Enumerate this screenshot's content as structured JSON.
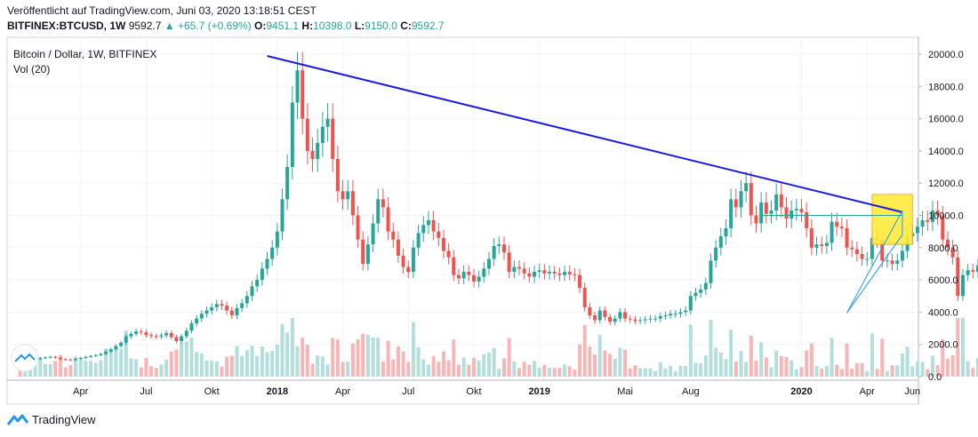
{
  "header": {
    "published": "Veröffentlicht auf TradingView.com, Juni 03, 2020 13:18:51 CEST",
    "symbol": "BITFINEX:BTCUSD, 1W",
    "last": "9592.7",
    "change": "▲ +65.7 (+0.69%)",
    "o_label": "O:",
    "o": "9451.1",
    "h_label": "H:",
    "h": "10398.0",
    "l_label": "L:",
    "l": "9150.0",
    "c_label": "C:",
    "c": "9592.7"
  },
  "legend": {
    "title": "Bitcoin / Dollar, 1W, BITFINEX",
    "vol": "Vol (20)"
  },
  "footer": {
    "brand": "TradingView"
  },
  "colors": {
    "up": "#26a69a",
    "down": "#ef5350",
    "up_vol": "#b2dfdb",
    "down_vol": "#f7b6b5",
    "trend": "#1c1ce0",
    "thin": "#2196f3",
    "box": "#ffeb3b"
  },
  "chart_data": {
    "type": "candlestick",
    "title": "Bitcoin / Dollar, 1W, BITFINEX",
    "ylim": [
      0,
      20000
    ],
    "y_ticks": [
      "0.0",
      "2000.0",
      "4000.0",
      "6000.0",
      "8000.0",
      "10000.0",
      "12000.0",
      "14000.0",
      "16000.0",
      "18000.0",
      "20000.0"
    ],
    "x_ticks": [
      "Apr",
      "Jul",
      "Okt",
      "2018",
      "Apr",
      "Jul",
      "Okt",
      "2019",
      "Mai",
      "Aug",
      "2020",
      "Apr",
      "Jun"
    ],
    "x_tick_positions_week": [
      13,
      26,
      39,
      52,
      65,
      78,
      91,
      104,
      121,
      134,
      156,
      169,
      178
    ],
    "start_date": "2017-01-02",
    "closes": [
      1000,
      980,
      1010,
      1040,
      1080,
      1150,
      1190,
      1230,
      1170,
      1080,
      1060,
      1030,
      1100,
      1160,
      1220,
      1280,
      1330,
      1400,
      1550,
      1700,
      1900,
      2100,
      2500,
      2650,
      2800,
      2750,
      2580,
      2520,
      2480,
      2560,
      2700,
      2450,
      2200,
      2500,
      2850,
      3300,
      3600,
      3900,
      4100,
      4300,
      4500,
      4400,
      4100,
      3800,
      4250,
      4550,
      5000,
      5600,
      6000,
      6700,
      7300,
      8000,
      9000,
      11000,
      13000,
      17000,
      19000,
      16000,
      14000,
      13500,
      14500,
      15500,
      16000,
      13500,
      11500,
      11000,
      11500,
      10000,
      8500,
      7000,
      8200,
      9500,
      11000,
      10500,
      9000,
      8500,
      7500,
      6800,
      6500,
      8000,
      8900,
      9400,
      9700,
      9000,
      8600,
      7800,
      7400,
      6300,
      6100,
      6500,
      6300,
      5900,
      6200,
      6700,
      7300,
      8100,
      8200,
      7700,
      6500,
      6800,
      6700,
      6400,
      6200,
      6500,
      6600,
      6400,
      6500,
      6400,
      6300,
      6500,
      6350,
      6300,
      5500,
      4300,
      3800,
      3500,
      4100,
      3700,
      3400,
      3600,
      4000,
      3600,
      3550,
      3450,
      3500,
      3550,
      3600,
      3600,
      3750,
      3800,
      3900,
      3900,
      4000,
      4100,
      5000,
      5200,
      5400,
      5800,
      7200,
      8000,
      8700,
      9200,
      11000,
      10500,
      11500,
      12000,
      10000,
      9500,
      10800,
      10100,
      10300,
      11300,
      10500,
      9800,
      10300,
      10400,
      10200,
      9200,
      8000,
      8200,
      8100,
      8300,
      9600,
      9300,
      9200,
      8000,
      7900,
      7600,
      7300,
      7300,
      8600,
      8500,
      7200,
      7200,
      7000,
      7200,
      7800,
      8700,
      8900,
      9300,
      9700,
      9600,
      10300,
      10000,
      8500,
      8000,
      7400,
      5000,
      6300,
      6600,
      6500,
      6900,
      7100,
      6900,
      7500,
      7600,
      8800,
      8900,
      8700,
      9500,
      9600,
      9500,
      9592
    ]
  },
  "drawings": {
    "trendline": {
      "from": {
        "week": 50,
        "price": 19891
      },
      "to": {
        "week": 176,
        "price": 10200
      }
    },
    "horizontal": {
      "from": {
        "week": 148,
        "price": 10000
      },
      "to": {
        "week": 176,
        "price": 10000
      }
    },
    "triangle": [
      {
        "week": 165,
        "price": 3950
      },
      {
        "week": 176,
        "price": 10300
      },
      {
        "week": 176,
        "price": 8800
      }
    ],
    "highlight_box": {
      "from": {
        "week": 170,
        "price": 11300
      },
      "to": {
        "week": 178,
        "price": 8200
      }
    }
  }
}
